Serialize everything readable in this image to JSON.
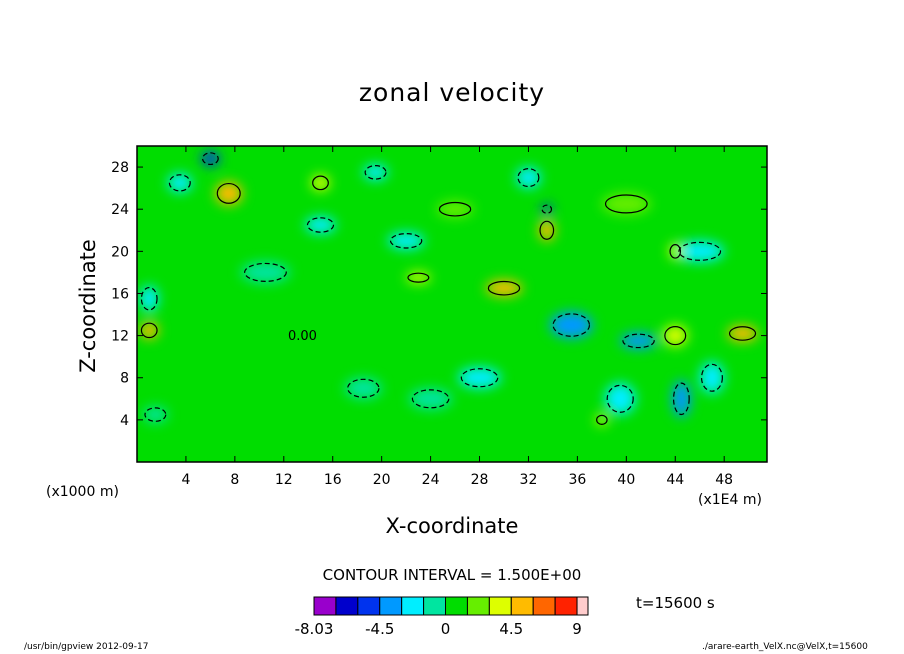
{
  "chart_data": {
    "type": "contour",
    "title": "zonal velocity",
    "xlabel": "X-coordinate",
    "ylabel": "Z-coordinate",
    "x_unit": "(x1E4 m)",
    "y_unit": "(x1000 m)",
    "xlim": [
      0,
      51.5
    ],
    "ylim": [
      0,
      30
    ],
    "x_ticks": [
      4,
      8,
      12,
      16,
      20,
      24,
      28,
      32,
      36,
      40,
      44,
      48
    ],
    "y_ticks": [
      4,
      8,
      12,
      16,
      20,
      24,
      28
    ],
    "contour_interval_text": "CONTOUR INTERVAL = 1.500E+00",
    "contour_interval": 1.5,
    "colorbar": {
      "ticks": [
        "-8.03",
        "-4.5",
        "0",
        "4.5",
        "9"
      ],
      "levels": [
        -8.03,
        -7.5,
        -6,
        -4.5,
        -3,
        -1.5,
        0,
        1.5,
        3,
        4.5,
        6,
        7.5,
        9
      ],
      "colors": [
        "#9900cc",
        "#0000cc",
        "#0033ee",
        "#0099ff",
        "#00eeff",
        "#00e5a0",
        "#00dd00",
        "#66ee00",
        "#ddff00",
        "#ffbb00",
        "#ff6600",
        "#ff2200",
        "#ffcccc"
      ]
    },
    "time_label": "t=15600 s",
    "contour_label": "0.00",
    "features": [
      {
        "x": 7.5,
        "z": 25.5,
        "value": 4.5,
        "w": 2.2,
        "h": 2.2
      },
      {
        "x": 6.0,
        "z": 28.8,
        "value": -6.0,
        "w": 1.5,
        "h": 1.3
      },
      {
        "x": 3.5,
        "z": 26.5,
        "value": -3.0,
        "w": 2.0,
        "h": 1.8
      },
      {
        "x": 15.0,
        "z": 26.5,
        "value": 3.0,
        "w": 1.5,
        "h": 1.5
      },
      {
        "x": 19.5,
        "z": 27.5,
        "value": -3.0,
        "w": 2.0,
        "h": 1.5
      },
      {
        "x": 15.0,
        "z": 22.5,
        "value": -3.0,
        "w": 2.5,
        "h": 1.6
      },
      {
        "x": 22.0,
        "z": 21.0,
        "value": -3.0,
        "w": 3.0,
        "h": 1.6
      },
      {
        "x": 1.0,
        "z": 15.5,
        "value": -3.0,
        "w": 1.5,
        "h": 2.5
      },
      {
        "x": 1.0,
        "z": 12.5,
        "value": 4.5,
        "w": 1.5,
        "h": 1.6
      },
      {
        "x": 10.5,
        "z": 18.0,
        "value": -1.5,
        "w": 4.0,
        "h": 2.0
      },
      {
        "x": 30.0,
        "z": 16.5,
        "value": 4.5,
        "w": 3.0,
        "h": 1.5
      },
      {
        "x": 33.5,
        "z": 22.0,
        "value": 4.5,
        "w": 1.3,
        "h": 2.0
      },
      {
        "x": 33.5,
        "z": 24.0,
        "value": -6.0,
        "w": 0.9,
        "h": 0.9
      },
      {
        "x": 32.0,
        "z": 27.0,
        "value": -3.0,
        "w": 2.0,
        "h": 2.0
      },
      {
        "x": 35.5,
        "z": 13.0,
        "value": -4.5,
        "w": 3.5,
        "h": 2.5
      },
      {
        "x": 41.0,
        "z": 11.5,
        "value": -4.5,
        "w": 3.0,
        "h": 1.5
      },
      {
        "x": 46.0,
        "z": 20.0,
        "value": -3.0,
        "w": 4.0,
        "h": 2.0
      },
      {
        "x": 49.5,
        "z": 12.2,
        "value": 4.5,
        "w": 2.5,
        "h": 1.5
      },
      {
        "x": 44.0,
        "z": 12.0,
        "value": 3.0,
        "w": 2.0,
        "h": 2.0
      },
      {
        "x": 28.0,
        "z": 8.0,
        "value": -3.0,
        "w": 3.5,
        "h": 2.0
      },
      {
        "x": 24.0,
        "z": 6.0,
        "value": -1.5,
        "w": 3.5,
        "h": 2.0
      },
      {
        "x": 1.5,
        "z": 4.5,
        "value": -1.5,
        "w": 2.0,
        "h": 1.5
      },
      {
        "x": 39.5,
        "z": 6.0,
        "value": -3.0,
        "w": 2.5,
        "h": 3.0
      },
      {
        "x": 44.5,
        "z": 6.0,
        "value": -4.5,
        "w": 1.5,
        "h": 3.5
      },
      {
        "x": 47.0,
        "z": 8.0,
        "value": -3.0,
        "w": 2.0,
        "h": 3.0
      },
      {
        "x": 44.0,
        "z": 20.0,
        "value": 3.0,
        "w": 1.0,
        "h": 1.5
      },
      {
        "x": 40.0,
        "z": 24.5,
        "value": 1.5,
        "w": 4.0,
        "h": 2.0
      },
      {
        "x": 26.0,
        "z": 24.0,
        "value": 1.5,
        "w": 3.0,
        "h": 1.5
      },
      {
        "x": 38.0,
        "z": 4.0,
        "value": 3.0,
        "w": 1.0,
        "h": 1.0
      },
      {
        "x": 23.0,
        "z": 17.5,
        "value": 3.0,
        "w": 2.0,
        "h": 1.0
      },
      {
        "x": 18.5,
        "z": 7.0,
        "value": -1.5,
        "w": 3.0,
        "h": 2.0
      }
    ]
  },
  "footer": {
    "left": "/usr/bin/gpview  2012-09-17",
    "right": "./arare-earth_VelX.nc@VelX,t=15600"
  }
}
